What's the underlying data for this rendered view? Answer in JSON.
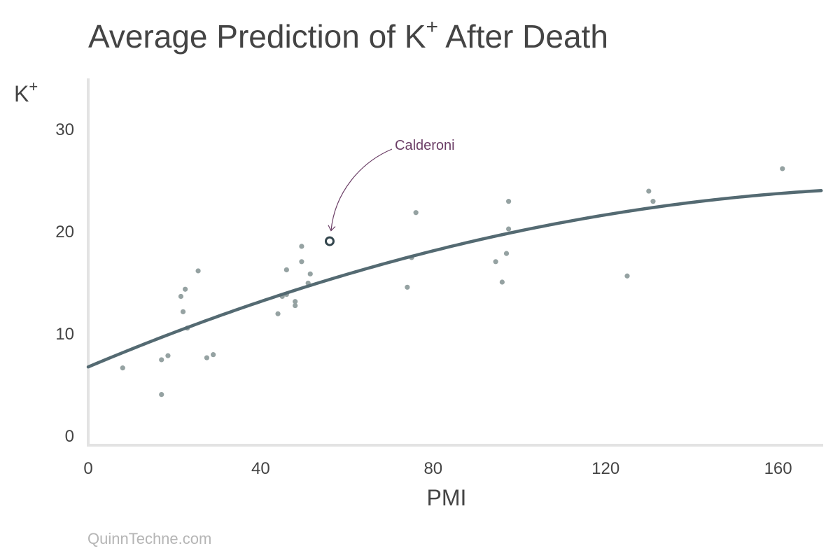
{
  "chart_data": {
    "type": "scatter",
    "title": "Average Prediction of K",
    "title_sup": "+",
    "title_suffix": " After Death",
    "ylabel": "K",
    "ylabel_sup": "+",
    "xlabel": "PMI",
    "xlim": [
      0,
      170
    ],
    "ylim": [
      -1,
      35
    ],
    "xticks": [
      0,
      40,
      80,
      120,
      160
    ],
    "yticks": [
      0,
      10,
      20,
      30
    ],
    "grid": false,
    "points_color": "#95a2a2",
    "curve_color": "#546a72",
    "highlight_color": "#33464d",
    "annotation_color": "#6b3e66",
    "points": [
      [
        8,
        6.6
      ],
      [
        17,
        7.4
      ],
      [
        17,
        4.0
      ],
      [
        18.5,
        7.8
      ],
      [
        21.5,
        13.6
      ],
      [
        22,
        12.1
      ],
      [
        22.5,
        14.3
      ],
      [
        23,
        10.5
      ],
      [
        25.5,
        16.1
      ],
      [
        27.5,
        7.6
      ],
      [
        29,
        7.9
      ],
      [
        44,
        11.9
      ],
      [
        45,
        13.6
      ],
      [
        46,
        13.8
      ],
      [
        46,
        16.2
      ],
      [
        48,
        12.7
      ],
      [
        48,
        13.1
      ],
      [
        49.5,
        18.5
      ],
      [
        49.5,
        17.0
      ],
      [
        51,
        14.9
      ],
      [
        51.5,
        15.8
      ],
      [
        74,
        14.5
      ],
      [
        75,
        17.4
      ],
      [
        76,
        21.8
      ],
      [
        94.5,
        17.0
      ],
      [
        96,
        15.0
      ],
      [
        97,
        17.8
      ],
      [
        97.5,
        20.2
      ],
      [
        97.5,
        22.9
      ],
      [
        125,
        15.6
      ],
      [
        130,
        23.9
      ],
      [
        131,
        22.9
      ],
      [
        161,
        26.1
      ]
    ],
    "highlight": {
      "x": 56,
      "y": 19.0,
      "label": "Calderoni"
    },
    "curve": {
      "a": 6.7,
      "b": 0.178,
      "c": -0.00045
    }
  },
  "footer": {
    "source": "QuinnTechne.com"
  }
}
